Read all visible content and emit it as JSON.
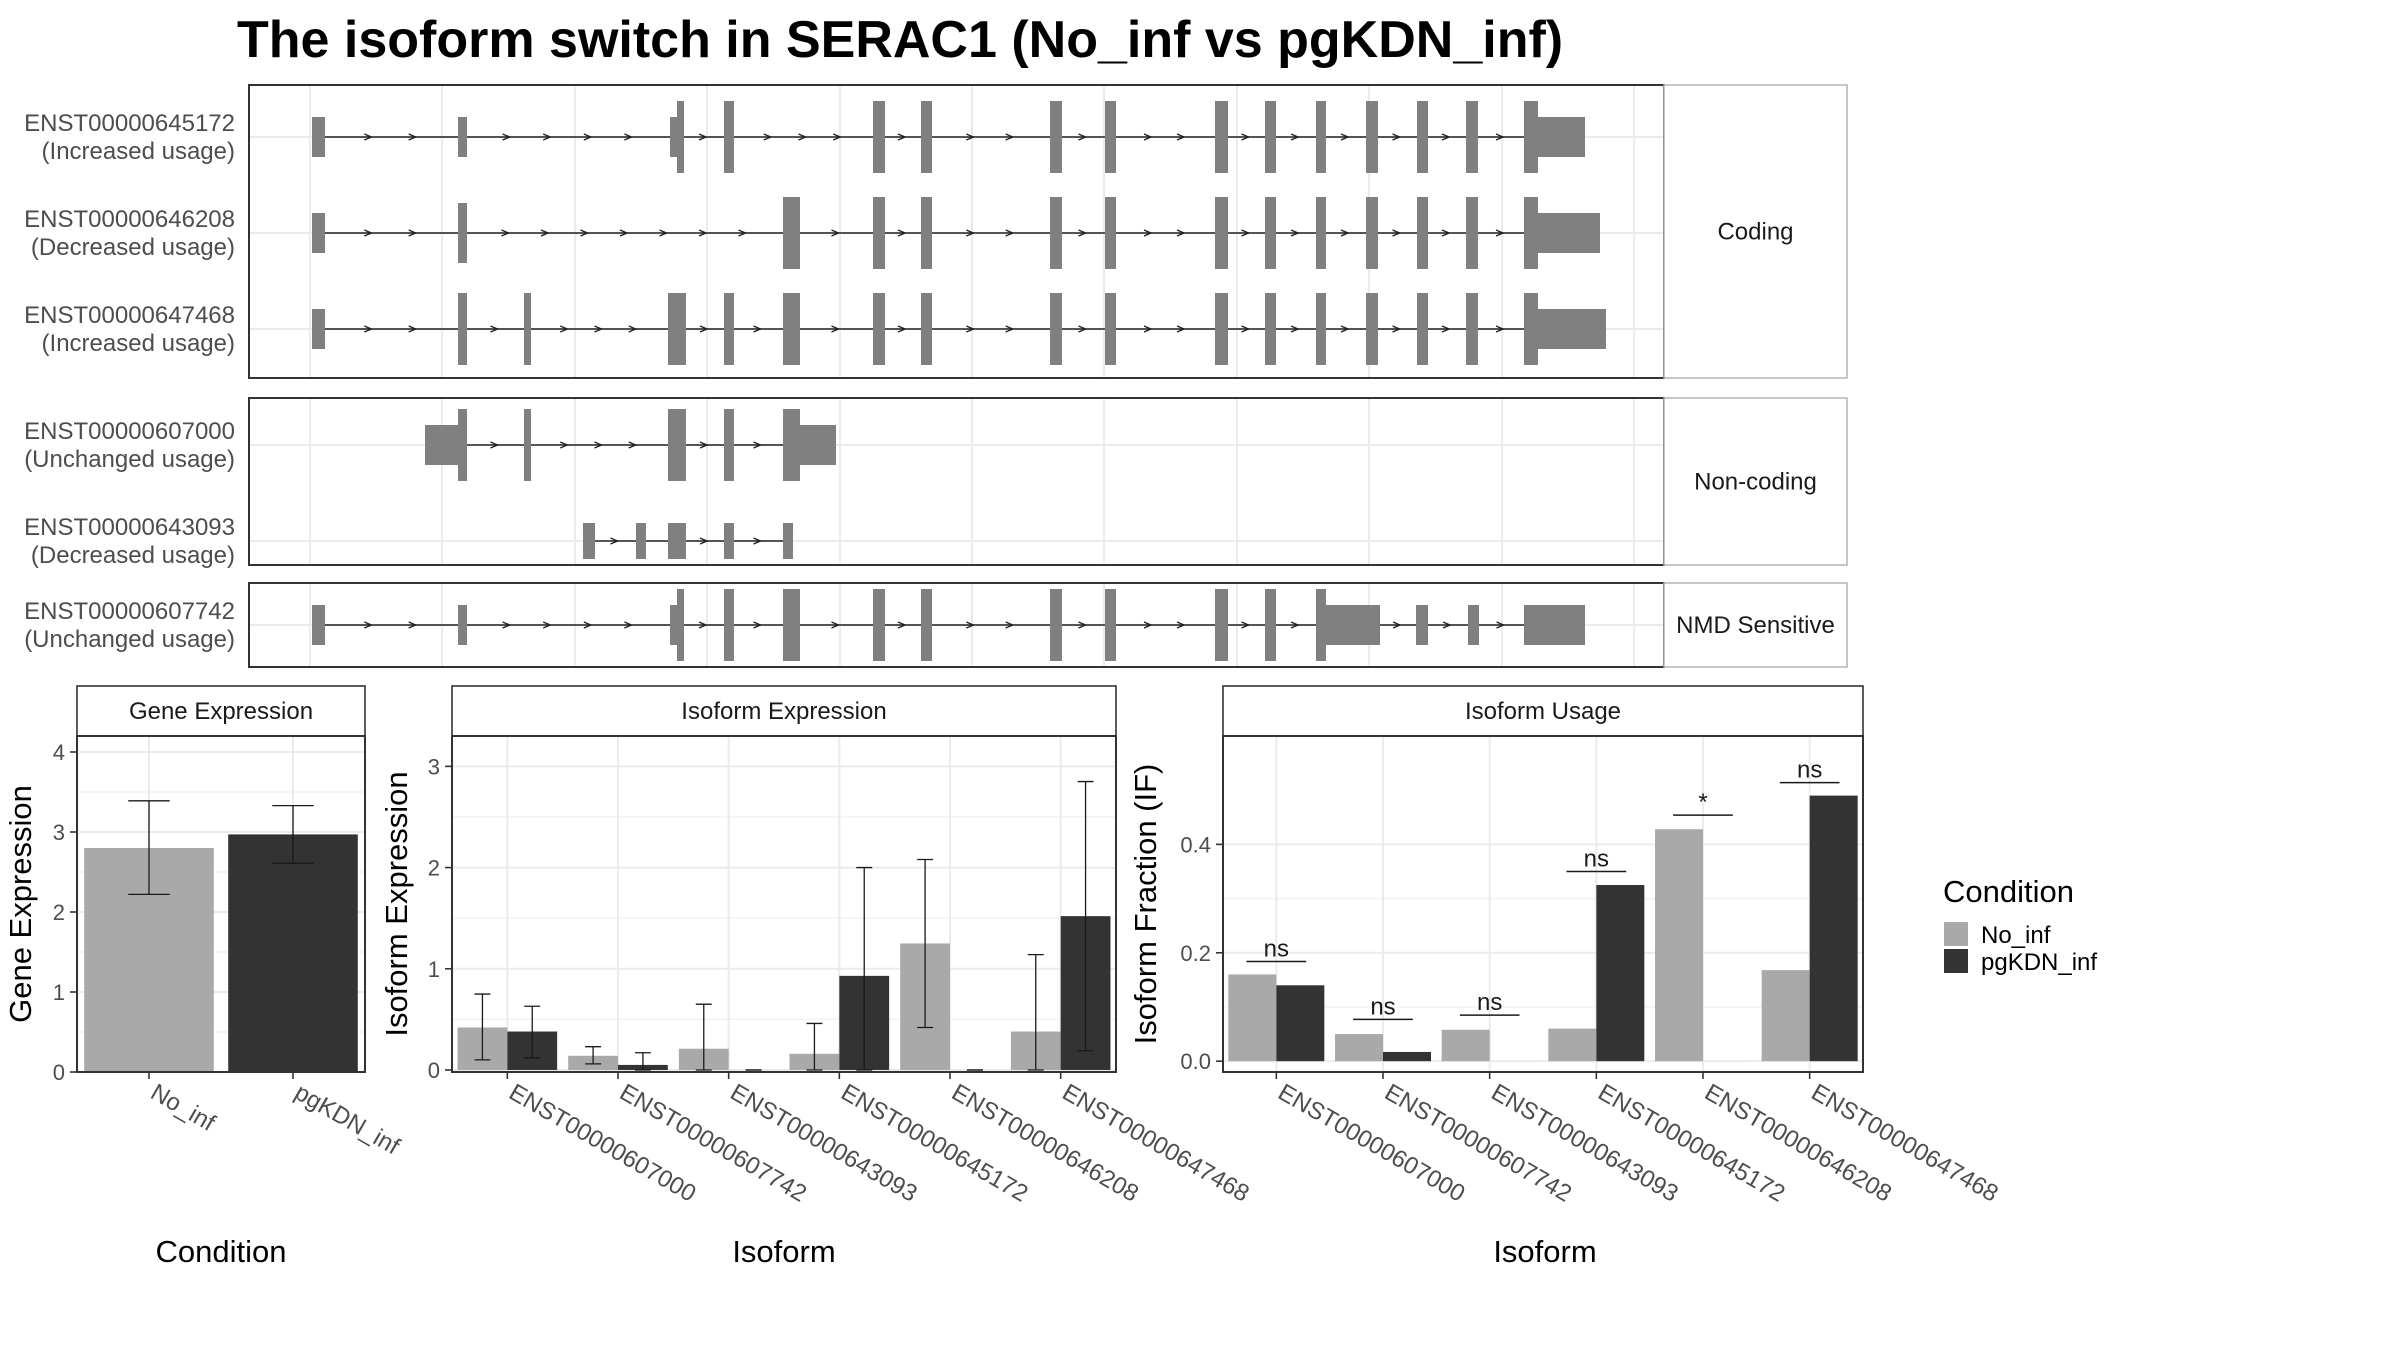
{
  "title": "The isoform switch in SERAC1 (No_inf vs pgKDN_inf)",
  "colors": {
    "no_inf": "#a9a9a9",
    "pgkdn_inf": "#333333",
    "exon": "#808080",
    "panel_border": "#333333",
    "strip_fill": "#ffffff",
    "grid": "#ebebeb"
  },
  "chart_data": [
    {
      "type": "gene_structure",
      "title": "The isoform switch in SERAC1 (No_inf vs pgKDN_inf)",
      "groups": [
        {
          "label": "Coding",
          "isoforms": [
            {
              "id": "ENST00000645172",
              "usage": "(Increased usage)"
            },
            {
              "id": "ENST00000646208",
              "usage": "(Decreased usage)"
            },
            {
              "id": "ENST00000647468",
              "usage": "(Increased usage)"
            }
          ]
        },
        {
          "label": "Non-coding",
          "isoforms": [
            {
              "id": "ENST00000607000",
              "usage": "(Unchanged usage)"
            },
            {
              "id": "ENST00000643093",
              "usage": "(Decreased usage)"
            }
          ]
        },
        {
          "label": "NMD Sensitive",
          "isoforms": [
            {
              "id": "ENST00000607742",
              "usage": "(Unchanged usage)"
            }
          ]
        }
      ],
      "grid": true
    },
    {
      "type": "bar",
      "strip": "Gene Expression",
      "categories": [
        "No_inf",
        "pgKDN_inf"
      ],
      "values": [
        2.8,
        2.97
      ],
      "err_low": [
        2.22,
        2.61
      ],
      "err_high": [
        3.39,
        3.33
      ],
      "xlabel": "Condition",
      "ylabel": "Gene Expression",
      "ylim": [
        0,
        4.2
      ],
      "yticks": [
        "0",
        "1",
        "2",
        "3",
        "4"
      ],
      "grid": true
    },
    {
      "type": "bar",
      "strip": "Isoform Expression",
      "categories": [
        "ENST00000607000",
        "ENST00000607742",
        "ENST00000643093",
        "ENST00000645172",
        "ENST00000646208",
        "ENST00000647468"
      ],
      "series": [
        {
          "name": "No_inf",
          "values": [
            0.42,
            0.14,
            0.21,
            0.16,
            1.25,
            0.38
          ],
          "err_low": [
            0.1,
            0.06,
            0.0,
            0.0,
            0.42,
            0.0
          ],
          "err_high": [
            0.75,
            0.23,
            0.65,
            0.46,
            2.08,
            1.14
          ]
        },
        {
          "name": "pgKDN_inf",
          "values": [
            0.38,
            0.05,
            0.0,
            0.93,
            0.0,
            1.52
          ],
          "err_low": [
            0.12,
            0.0,
            0.0,
            0.0,
            0.0,
            0.19
          ],
          "err_high": [
            0.63,
            0.17,
            0.0,
            2.0,
            0.0,
            2.85
          ]
        }
      ],
      "xlabel": "Isoform",
      "ylabel": "Isoform Expression",
      "ylim": [
        -0.02,
        3.3
      ],
      "yticks": [
        "0",
        "1",
        "2",
        "3"
      ],
      "grid": true
    },
    {
      "type": "bar",
      "strip": "Isoform Usage",
      "categories": [
        "ENST00000607000",
        "ENST00000607742",
        "ENST00000643093",
        "ENST00000645172",
        "ENST00000646208",
        "ENST00000647468"
      ],
      "series": [
        {
          "name": "No_inf",
          "values": [
            0.16,
            0.05,
            0.058,
            0.06,
            0.428,
            0.168
          ]
        },
        {
          "name": "pgKDN_inf",
          "values": [
            0.14,
            0.017,
            0.0,
            0.325,
            0.0,
            0.49
          ]
        }
      ],
      "significance": [
        {
          "label": "ns",
          "y": 0.184
        },
        {
          "label": "ns",
          "y": 0.077
        },
        {
          "label": "ns",
          "y": 0.085
        },
        {
          "label": "ns",
          "y": 0.35
        },
        {
          "label": "*",
          "y": 0.454
        },
        {
          "label": "ns",
          "y": 0.514
        }
      ],
      "xlabel": "Isoform",
      "ylabel": "Isoform Fraction (IF)",
      "ylim": [
        -0.02,
        0.6
      ],
      "yticks": [
        "0.0",
        "0.2",
        "0.4"
      ],
      "grid": true
    }
  ],
  "legend": {
    "title": "Condition",
    "items": [
      "No_inf",
      "pgKDN_inf"
    ]
  }
}
